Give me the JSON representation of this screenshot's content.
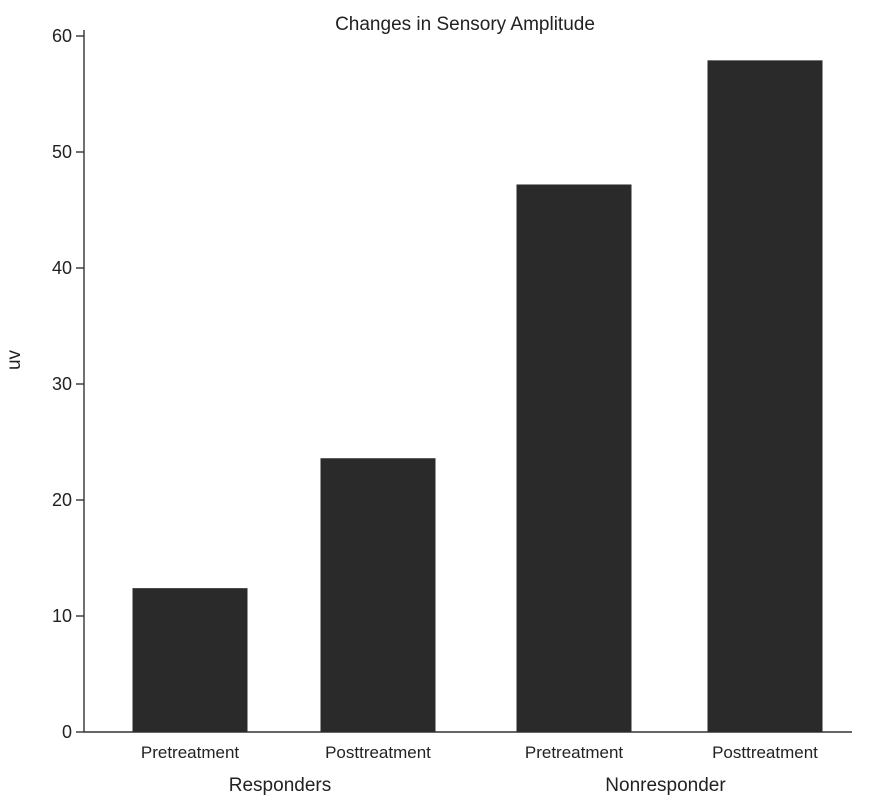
{
  "chart_data": {
    "type": "bar",
    "title": "Changes in Sensory Amplitude",
    "ylabel": "uv",
    "xlabel": "",
    "ylim": [
      0,
      60
    ],
    "yticks": [
      0,
      10,
      20,
      30,
      40,
      50,
      60
    ],
    "categories": [
      "Pretreatment",
      "Posttreatment",
      "Pretreatment",
      "Posttreatment"
    ],
    "values": [
      12.4,
      23.6,
      47.2,
      57.9
    ],
    "groups": [
      {
        "label": "Responders",
        "categories": [
          0,
          1
        ]
      },
      {
        "label": "Nonresponder",
        "categories": [
          2,
          3
        ]
      }
    ],
    "bar_color": "#2a2a2a",
    "grid": false,
    "legend": "none"
  }
}
